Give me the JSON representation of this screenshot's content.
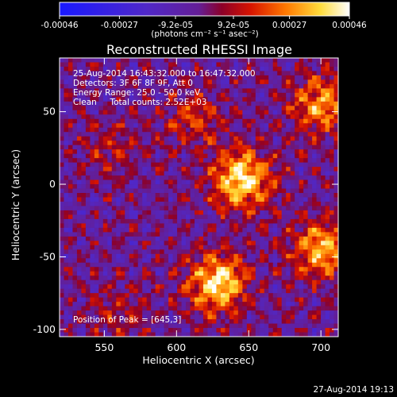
{
  "chart_data": {
    "type": "heatmap",
    "title": "Reconstructed RHESSI Image",
    "xlabel": "Heliocentric X (arcsec)",
    "ylabel": "Heliocentric Y (arcsec)",
    "xlim": [
      519,
      712
    ],
    "ylim": [
      -105,
      87
    ],
    "xticks": [
      550,
      600,
      650,
      700
    ],
    "yticks": [
      -100,
      -50,
      0,
      50
    ],
    "colorbar": {
      "ticks": [
        -0.00046,
        -0.00027,
        -9.2e-05,
        9.2e-05,
        0.00027,
        0.00046
      ],
      "tick_labels": [
        "-0.00046",
        "-0.00027",
        "-9.2e-05",
        "9.2e-05",
        "0.00027",
        "0.00046"
      ],
      "units_label": "(photons cm⁻² s⁻¹ asec⁻²)",
      "range": [
        -0.00046,
        0.00046
      ]
    },
    "annotations": [
      "25-Aug-2014 16:43:32.000 to 16:47:32.000",
      "Detectors: 3F 6F 8F 9F, Att 0",
      "Energy Range: 25.0 - 50.0 keV",
      "Clean     Total counts: 2.52E+03",
      "Position of Peak = [645,3]"
    ],
    "sources": [
      {
        "x": 645,
        "y": 3,
        "peak": 0.00046
      },
      {
        "x": 628,
        "y": -68,
        "peak": 0.00043
      },
      {
        "x": 700,
        "y": -45,
        "peak": 0.00034
      },
      {
        "x": 700,
        "y": 55,
        "peak": 0.00032
      },
      {
        "x": 612,
        "y": 45,
        "peak": 0.00017
      },
      {
        "x": 555,
        "y": 25,
        "peak": 0.00012
      },
      {
        "x": 560,
        "y": -88,
        "peak": 0.00012
      }
    ]
  },
  "footer": {
    "timestamp": "27-Aug-2014 19:13"
  }
}
